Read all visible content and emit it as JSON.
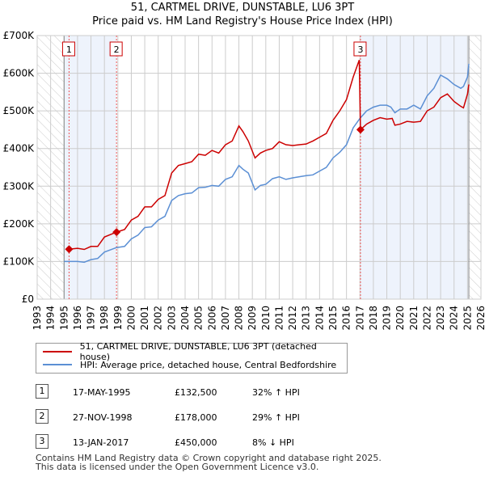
{
  "chart_data": {
    "type": "line",
    "title": "51, CARTMEL DRIVE, DUNSTABLE, LU6 3PT",
    "subtitle": "Price paid vs. HM Land Registry's House Price Index (HPI)",
    "xlim": [
      1993,
      2026
    ],
    "ylim": [
      0,
      700000
    ],
    "x_ticks": [
      "1993",
      "1994",
      "1995",
      "1996",
      "1997",
      "1998",
      "1999",
      "2000",
      "2001",
      "2002",
      "2003",
      "2004",
      "2005",
      "2006",
      "2007",
      "2008",
      "2009",
      "2010",
      "2011",
      "2012",
      "2013",
      "2014",
      "2015",
      "2016",
      "2017",
      "2018",
      "2019",
      "2020",
      "2021",
      "2022",
      "2023",
      "2024",
      "2025",
      "2026"
    ],
    "y_ticks": [
      {
        "v": 0,
        "label": "£0"
      },
      {
        "v": 100000,
        "label": "£100K"
      },
      {
        "v": 200000,
        "label": "£200K"
      },
      {
        "v": 300000,
        "label": "£300K"
      },
      {
        "v": 400000,
        "label": "£400K"
      },
      {
        "v": 500000,
        "label": "£500K"
      },
      {
        "v": 600000,
        "label": "£600K"
      },
      {
        "v": 700000,
        "label": "£700K"
      }
    ],
    "grid": true,
    "series": [
      {
        "name": "51, CARTMEL DRIVE, DUNSTABLE, LU6 3PT (detached house)",
        "color": "#cc0000",
        "x": [
          1995.37,
          1996,
          1996.5,
          1997,
          1997.5,
          1998,
          1998.9,
          1999.5,
          2000,
          2000.5,
          2001,
          2001.5,
          2002,
          2002.5,
          2003,
          2003.5,
          2004,
          2004.5,
          2005,
          2005.5,
          2006,
          2006.5,
          2007,
          2007.5,
          2008,
          2008.3,
          2008.7,
          2009.2,
          2009.6,
          2010,
          2010.5,
          2011,
          2011.5,
          2012,
          2012.5,
          2013,
          2013.5,
          2014,
          2014.5,
          2015,
          2015.5,
          2016,
          2016.5,
          2016.95,
          2017.04,
          2017.5,
          2018,
          2018.5,
          2019,
          2019.4,
          2019.6,
          2020,
          2020.5,
          2021,
          2021.5,
          2022,
          2022.5,
          2023,
          2023.5,
          2024,
          2024.5,
          2024.7,
          2025,
          2025.1
        ],
        "y": [
          132500,
          135000,
          132000,
          140000,
          140000,
          165000,
          178000,
          185000,
          210000,
          220000,
          245000,
          245000,
          265000,
          275000,
          335000,
          355000,
          360000,
          365000,
          385000,
          382000,
          395000,
          388000,
          410000,
          420000,
          460000,
          445000,
          420000,
          375000,
          388000,
          395000,
          400000,
          418000,
          410000,
          408000,
          410000,
          412000,
          420000,
          430000,
          440000,
          475000,
          500000,
          530000,
          590000,
          635000,
          450000,
          465000,
          475000,
          482000,
          478000,
          480000,
          462000,
          465000,
          472000,
          470000,
          472000,
          500000,
          510000,
          535000,
          545000,
          525000,
          512000,
          508000,
          545000,
          570000
        ]
      },
      {
        "name": "HPI: Average price, detached house, Central Bedfordshire",
        "color": "#5b8fd4",
        "x": [
          1995,
          1996,
          1996.5,
          1997,
          1997.5,
          1998,
          1998.9,
          1999.5,
          2000,
          2000.5,
          2001,
          2001.5,
          2002,
          2002.5,
          2003,
          2003.5,
          2004,
          2004.5,
          2005,
          2005.5,
          2006,
          2006.5,
          2007,
          2007.5,
          2008,
          2008.3,
          2008.7,
          2009.2,
          2009.6,
          2010,
          2010.5,
          2011,
          2011.5,
          2012,
          2012.5,
          2013,
          2013.5,
          2014,
          2014.5,
          2015,
          2015.5,
          2016,
          2016.5,
          2017,
          2017.5,
          2018,
          2018.5,
          2019,
          2019.3,
          2019.6,
          2020,
          2020.5,
          2021,
          2021.5,
          2022,
          2022.5,
          2023,
          2023.5,
          2024,
          2024.5,
          2024.7,
          2025,
          2025.1
        ],
        "y": [
          100000,
          100000,
          98000,
          105000,
          108000,
          125000,
          137000,
          140000,
          160000,
          170000,
          190000,
          192000,
          210000,
          220000,
          262000,
          275000,
          280000,
          282000,
          296000,
          297000,
          302000,
          300000,
          318000,
          325000,
          355000,
          345000,
          335000,
          290000,
          302000,
          305000,
          320000,
          325000,
          318000,
          322000,
          325000,
          328000,
          330000,
          340000,
          350000,
          375000,
          390000,
          410000,
          455000,
          480000,
          500000,
          510000,
          515000,
          515000,
          510000,
          495000,
          505000,
          505000,
          515000,
          505000,
          540000,
          560000,
          595000,
          585000,
          570000,
          560000,
          565000,
          590000,
          625000
        ]
      }
    ],
    "transactions": [
      {
        "n": "1",
        "date": "17-MAY-1995",
        "x": 1995.37,
        "price": "£132,500",
        "value": 132500,
        "hpi": "32% ↑ HPI"
      },
      {
        "n": "2",
        "date": "27-NOV-1998",
        "x": 1998.9,
        "price": "£178,000",
        "value": 178000,
        "hpi": "29% ↑ HPI"
      },
      {
        "n": "3",
        "date": "13-JAN-2017",
        "x": 2017.04,
        "price": "£450,000",
        "value": 450000,
        "hpi": "8% ↓ HPI"
      }
    ],
    "colors": {
      "red": "#cc0000",
      "blue": "#5b8fd4",
      "shade": "#eef3fc",
      "grid": "#cccccc"
    }
  },
  "footer": {
    "line1": "Contains HM Land Registry data © Crown copyright and database right 2025.",
    "line2": "This data is licensed under the Open Government Licence v3.0."
  }
}
